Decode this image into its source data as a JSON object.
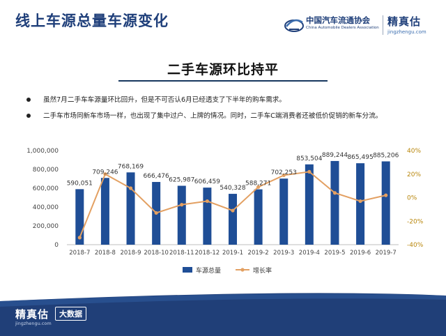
{
  "header": {
    "title": "线上车源总量车源变化",
    "logo_cn": "中国汽车流通协会",
    "logo_en": "China Automobile Dealers Association",
    "brand_cn": "精真估",
    "brand_en": "jingzhengu.com"
  },
  "subtitle": "二手车源环比持平",
  "bullets": [
    "虽然7月二手车车源量环比回升，但是不可否认6月已经透支了下半年的购车需求。",
    "二手车市场同新车市场一样，也出现了集中过户、上牌的情况。同时，二手车C端消费者还被低价促销的新车分流。"
  ],
  "chart_data": {
    "type": "bar",
    "categories": [
      "2018-7",
      "2018-8",
      "2018-9",
      "2018-10",
      "2018-11",
      "2018-12",
      "2019-1",
      "2019-2",
      "2019-3",
      "2019-4",
      "2019-5",
      "2019-6",
      "2019-7"
    ],
    "series": [
      {
        "name": "车源总量",
        "type": "bar",
        "axis": "left",
        "values": [
          590051,
          709246,
          768169,
          666476,
          625987,
          606459,
          540328,
          588271,
          702253,
          853504,
          889244,
          865495,
          885206
        ],
        "labels": [
          "590,051",
          "709,246",
          "768,169",
          "666,476",
          "625,987",
          "606,459",
          "540,328",
          "588,271",
          "702,253",
          "853,504",
          "889,244",
          "865,495",
          "885,206"
        ]
      },
      {
        "name": "增长率",
        "type": "line",
        "axis": "right",
        "values": [
          -34,
          20,
          8,
          -13,
          -6,
          -3,
          -11,
          9,
          19,
          22,
          4,
          -3,
          2
        ]
      }
    ],
    "y_left": {
      "min": 0,
      "max": 1000000,
      "ticks": [
        0,
        200000,
        400000,
        600000,
        800000,
        1000000
      ],
      "tick_labels": [
        "0",
        "200,000",
        "400,000",
        "600,000",
        "800,000",
        "1,000,000"
      ]
    },
    "y_right": {
      "min": -40,
      "max": 40,
      "ticks": [
        -40,
        -20,
        0,
        20,
        40
      ],
      "tick_labels": [
        "-40%",
        "-20%",
        "0%",
        "20%",
        "40%"
      ]
    },
    "colors": {
      "bar": "#1f4e96",
      "line": "#e3a062",
      "right_axis": "#b8860b"
    },
    "grid": false,
    "legend_position": "bottom"
  },
  "footer": {
    "brand_cn": "精真估",
    "brand_en": "jingzhengu.com",
    "tag": "大数据"
  }
}
